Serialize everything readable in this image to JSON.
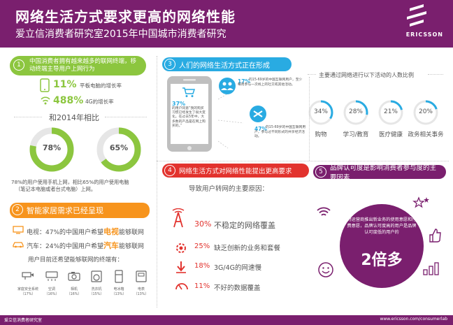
{
  "header": {
    "title": "网络生活方式要求更高的网络性能",
    "subtitle": "爱立信消费者研究室2015年中国城市消费者研究",
    "logo_text": "ERICSSON"
  },
  "section1": {
    "number": "1",
    "heading": "中国消费者拥有越来越多的联网终端，移动终端主导用户上网行为",
    "stat1_value": "11%",
    "stat1_label": "平板电脑的增长率",
    "stat2_value": "488%",
    "stat2_label": "4G的增长率",
    "compare_title": "和2014年相比",
    "donut1_value": "78%",
    "donut1_fraction": 0.78,
    "donut2_value": "65%",
    "donut2_fraction": 0.65,
    "note_line1": "78%的用户使用手机上网，相比65%的用户使用电脑",
    "note_line2": "（笔记本电脑或者台式电脑）上网。"
  },
  "section2": {
    "number": "2",
    "heading": "智能家居需求已经呈现",
    "tv_prefix": "电视：47%的中国用户希望",
    "tv_highlight": "电视",
    "tv_suffix": "能够联网",
    "car_prefix": "汽车：24%的中国用户希望",
    "car_highlight": "汽车",
    "car_suffix": "能够联网",
    "devices_title": "用户目前还希望能够联网的终端有：",
    "devices": [
      {
        "name": "家庭安全系统",
        "pct": "（17%）",
        "icon": "security-camera-icon"
      },
      {
        "name": "空调",
        "pct": "（16%）",
        "icon": "air-conditioner-icon"
      },
      {
        "name": "相机",
        "pct": "（16%）",
        "icon": "camera-icon"
      },
      {
        "name": "洗衣机",
        "pct": "（15%）",
        "icon": "washing-machine-icon"
      },
      {
        "name": "电冰箱",
        "pct": "（13%）",
        "icon": "fridge-icon"
      },
      {
        "name": "电表",
        "pct": "（13%）",
        "icon": "meter-icon"
      }
    ]
  },
  "section3": {
    "number": "3",
    "heading": "人们的网络生活方式正在形成",
    "phone_pct": "37%",
    "phone_text": "的用户同意“我的购买习惯已经发生了很大变化，在过去5年中，大多数的产品是在网上购买的。”",
    "bubble1_pct": "17%",
    "bubble1_text": "的15-69岁的中国互联网用户，至少每周参与一次线上的社交或其他活动。",
    "bubble2_pct": "47%",
    "bubble2_text": "的15-69岁的中国互联网用户，参与过不同形式的共享经济活动。",
    "activities_title": "主要通过网络进行以下活动的人数比例",
    "activities": [
      {
        "pct": "34%",
        "fraction": 0.34,
        "label": "购物"
      },
      {
        "pct": "28%",
        "fraction": 0.28,
        "label": "学习/教育"
      },
      {
        "pct": "21%",
        "fraction": 0.21,
        "label": "医疗健康"
      },
      {
        "pct": "20%",
        "fraction": 0.2,
        "label": "政务相关事务"
      }
    ]
  },
  "section4": {
    "number": "4",
    "heading": "网络生活方式对网络性能提出更高要求",
    "subheading": "导致用户转网的主要原因：",
    "reasons": [
      {
        "pct": "30%",
        "label": "不稳定的网络覆盖",
        "icon": "signal-tower-icon"
      },
      {
        "pct": "25%",
        "label": "缺乏创新的业务和套餐",
        "icon": "gear-alert-icon"
      },
      {
        "pct": "18%",
        "label": "3G/4G的网速慢",
        "icon": "slow-speed-icon"
      },
      {
        "pct": "11%",
        "label": "不好的数据覆盖",
        "icon": "data-gauge-icon"
      }
    ]
  },
  "section5": {
    "number": "5",
    "heading": "品牌认可度是影响消费者参与度的主要因素",
    "circle_text": "对运营商推出新业务的使用意愿和付费意愿，品牌认可度高的用户是品牌认可度低的用户的",
    "multiplier": "2倍多"
  },
  "footer": {
    "left": "爱立信消费者研究室",
    "right": "www.ericsson.com/consumerlab"
  },
  "colors": {
    "purple": "#7a1f6e",
    "green": "#8cc63f",
    "orange": "#f7941d",
    "blue": "#29abe2",
    "red": "#e2332e"
  }
}
